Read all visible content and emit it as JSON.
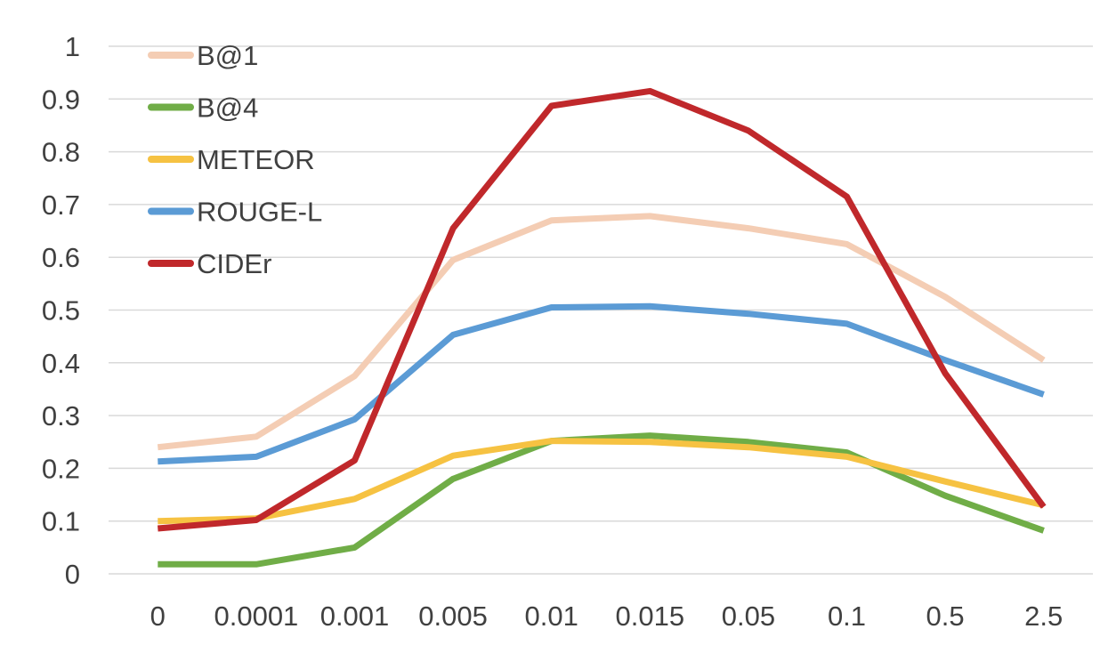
{
  "chart_data": {
    "type": "line",
    "title": "",
    "xlabel": "",
    "ylabel": "",
    "categories": [
      "0",
      "0.0001",
      "0.001",
      "0.005",
      "0.01",
      "0.015",
      "0.05",
      "0.1",
      "0.5",
      "2.5"
    ],
    "y_ticks": [
      "0",
      "0.1",
      "0.2",
      "0.3",
      "0.4",
      "0.5",
      "0.6",
      "0.7",
      "0.8",
      "0.9",
      "1"
    ],
    "ylim": [
      0,
      1
    ],
    "grid": true,
    "legend_position": "top-left",
    "series": [
      {
        "name": "B@1",
        "color": "#f4cdb4",
        "values": [
          0.24,
          0.26,
          0.375,
          0.595,
          0.67,
          0.678,
          0.655,
          0.625,
          0.525,
          0.405
        ]
      },
      {
        "name": "B@4",
        "color": "#70ad47",
        "values": [
          0.018,
          0.018,
          0.05,
          0.18,
          0.252,
          0.262,
          0.25,
          0.23,
          0.148,
          0.082
        ]
      },
      {
        "name": "METEOR",
        "color": "#f6c242",
        "values": [
          0.1,
          0.105,
          0.142,
          0.224,
          0.252,
          0.25,
          0.24,
          0.222,
          0.175,
          0.13
        ]
      },
      {
        "name": "ROUGE-L",
        "color": "#5b9bd5",
        "values": [
          0.213,
          0.222,
          0.293,
          0.453,
          0.505,
          0.507,
          0.493,
          0.474,
          0.405,
          0.34
        ]
      },
      {
        "name": "CIDEr",
        "color": "#c0282b",
        "values": [
          0.086,
          0.102,
          0.215,
          0.655,
          0.887,
          0.915,
          0.84,
          0.715,
          0.38,
          0.127
        ]
      }
    ]
  }
}
